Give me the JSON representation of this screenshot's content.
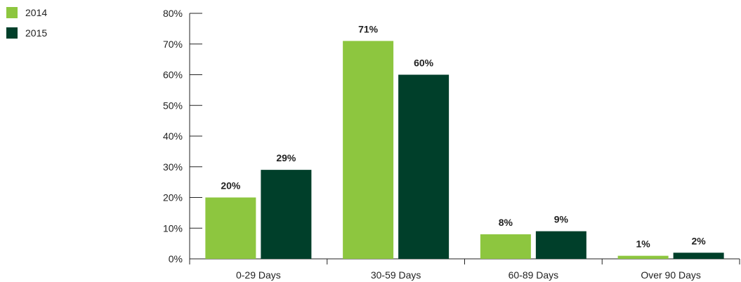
{
  "chart_data": {
    "type": "bar",
    "title": "",
    "xlabel": "",
    "ylabel": "",
    "categories": [
      "0-29 Days",
      "30-59 Days",
      "60-89 Days",
      "Over 90 Days"
    ],
    "series": [
      {
        "name": "2014",
        "values": [
          20,
          71,
          8,
          1
        ],
        "color": "#8dc63f"
      },
      {
        "name": "2015",
        "values": [
          29,
          60,
          9,
          2
        ],
        "color": "#003f2a"
      }
    ],
    "data_labels": [
      [
        "20%",
        "71%",
        "8%",
        "1%"
      ],
      [
        "29%",
        "60%",
        "9%",
        "2%"
      ]
    ],
    "y_ticks": [
      0,
      10,
      20,
      30,
      40,
      50,
      60,
      70,
      80
    ],
    "y_tick_labels": [
      "0%",
      "10%",
      "20%",
      "30%",
      "40%",
      "50%",
      "60%",
      "70%",
      "80%"
    ],
    "ylim": [
      0,
      80
    ],
    "grid": false,
    "legend_position": "top-left",
    "axis_color": "#222222"
  }
}
